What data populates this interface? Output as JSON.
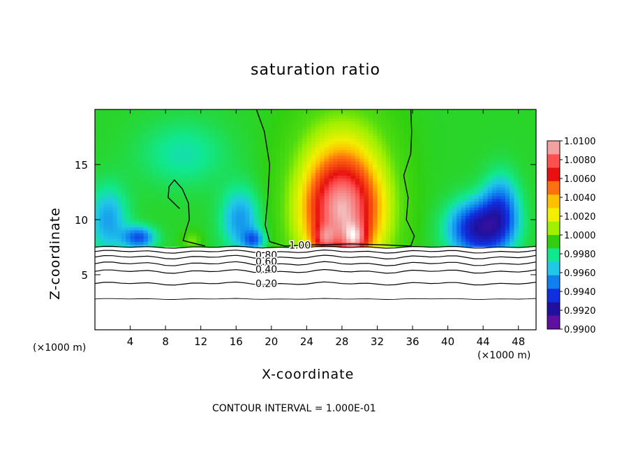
{
  "chart_data": {
    "type": "heatmap",
    "title": "saturation ratio",
    "xlabel": "X-coordinate",
    "ylabel": "Z-coordinate",
    "x_unit_label_left": "(×1000 m)",
    "x_unit_label_right": "(×1000 m)",
    "footer": "CONTOUR INTERVAL = 1.000E-01",
    "xlim": [
      0,
      50
    ],
    "ylim": [
      0,
      20
    ],
    "x_ticks": [
      4,
      8,
      12,
      16,
      20,
      24,
      28,
      32,
      36,
      40,
      44,
      48
    ],
    "x_tick_labels": [
      "4",
      "8",
      "12",
      "16",
      "20",
      "24",
      "28",
      "32",
      "36",
      "40",
      "44",
      "48"
    ],
    "y_ticks": [
      5,
      10,
      15
    ],
    "y_tick_labels": [
      "5",
      "10",
      "15"
    ],
    "colorbar": {
      "labels": [
        "1.0100",
        "1.0080",
        "1.0060",
        "1.0040",
        "1.0020",
        "1.0000",
        "0.9980",
        "0.9960",
        "0.9940",
        "0.9920",
        "0.9900"
      ],
      "levels": [
        1.01,
        1.008,
        1.006,
        1.004,
        1.002,
        1.0,
        0.998,
        0.996,
        0.994,
        0.992,
        0.99
      ],
      "colors": [
        "#f2a0a0",
        "#ff5050",
        "#e81010",
        "#ff7010",
        "#ffc000",
        "#f0f000",
        "#a0f000",
        "#30d010",
        "#10e890",
        "#20c8e8",
        "#1080f0",
        "#1030e0",
        "#2010a0",
        "#6010a0"
      ]
    },
    "field_region_z_min": 7.5,
    "features": [
      {
        "kind": "max",
        "x": 27,
        "z": 12,
        "value": 1.008
      },
      {
        "kind": "max",
        "x": 29.5,
        "z": 9,
        "value": 1.01
      },
      {
        "kind": "min",
        "x": 43,
        "z": 8.5,
        "value": 0.991
      },
      {
        "kind": "min",
        "x": 17,
        "z": 8.3,
        "value": 0.994
      },
      {
        "kind": "min",
        "x": 5,
        "z": 8.0,
        "value": 0.993
      }
    ],
    "contours": [
      {
        "level": 1.0,
        "label": "1.00",
        "label_x": 22,
        "label_z": 7.7
      },
      {
        "level": 0.8,
        "label": "0.80",
        "label_x": 18.2,
        "label_z": 6.8
      },
      {
        "level": 0.6,
        "label": "0.60",
        "label_x": 18.2,
        "label_z": 6.2
      },
      {
        "level": 0.4,
        "label": "0.40",
        "label_x": 18.2,
        "label_z": 5.5
      },
      {
        "level": 0.2,
        "label": "0.20",
        "label_x": 18.2,
        "label_z": 4.2
      }
    ]
  }
}
